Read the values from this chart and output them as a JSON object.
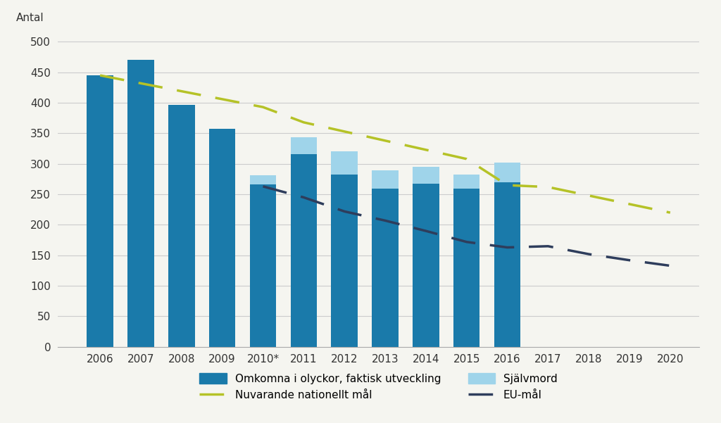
{
  "years_bars": [
    "2006",
    "2007",
    "2008",
    "2009",
    "2010*",
    "2011",
    "2012",
    "2013",
    "2014",
    "2015",
    "2016"
  ],
  "bar_accident": [
    445,
    471,
    397,
    357,
    266,
    316,
    283,
    259,
    268,
    259,
    270
  ],
  "bar_suicide": [
    0,
    0,
    0,
    0,
    15,
    27,
    37,
    30,
    27,
    23,
    32
  ],
  "years_lines": [
    2006,
    2007,
    2008,
    2009,
    2010,
    2011,
    2012,
    2013,
    2014,
    2015,
    2016,
    2017,
    2018,
    2019,
    2020
  ],
  "national_goal": [
    445,
    432,
    419,
    406,
    393,
    368,
    353,
    338,
    323,
    308,
    265,
    262,
    248,
    234,
    220
  ],
  "eu_goal_x": [
    2010,
    2011,
    2012,
    2013,
    2014,
    2015,
    2016,
    2017,
    2018,
    2019,
    2020
  ],
  "eu_goal_y": [
    263,
    245,
    222,
    207,
    190,
    172,
    163,
    165,
    152,
    142,
    133
  ],
  "bar_color": "#1a7aaa",
  "suicide_color": "#9fd4ea",
  "national_color": "#b5c227",
  "eu_color": "#2e3d5c",
  "background_color": "#f5f5f0",
  "ylabel": "Antal",
  "ylim": [
    0,
    520
  ],
  "yticks": [
    0,
    50,
    100,
    150,
    200,
    250,
    300,
    350,
    400,
    450,
    500
  ],
  "legend_accident": "Omkomna i olyckor, faktisk utveckling",
  "legend_suicide": "Självmord",
  "legend_national": "Nuvarande nationellt mål",
  "legend_eu": "EU-mål",
  "figsize": [
    10.24,
    6.01
  ],
  "dpi": 100
}
